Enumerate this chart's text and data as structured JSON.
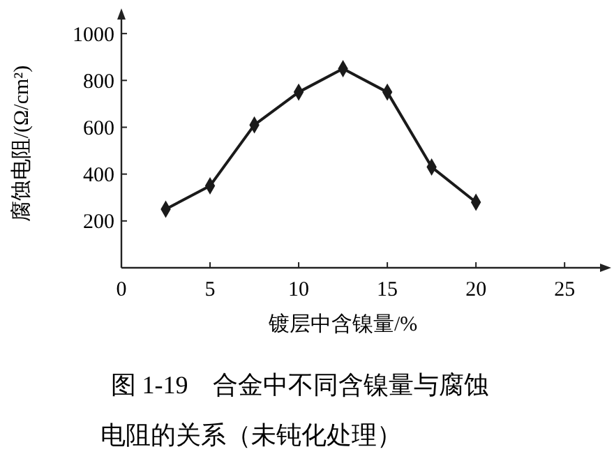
{
  "chart_data": {
    "type": "line",
    "title": "图 1-19　合金中不同含镍量与腐蚀电阻的关系（未钝化处理）",
    "xlabel": "镀层中含镍量/%",
    "ylabel": "腐蚀电阻/(Ω/cm²)",
    "x": [
      2.5,
      5,
      7.5,
      10,
      12.5,
      15,
      17.5,
      20
    ],
    "series": [
      {
        "color": "#1a1a1a",
        "values": [
          250,
          350,
          610,
          750,
          850,
          750,
          430,
          280
        ]
      }
    ],
    "xlim": [
      0,
      27
    ],
    "xticks": [
      0,
      5,
      10,
      15,
      20,
      25
    ],
    "ylim": [
      0,
      1060
    ],
    "yticks": [
      200,
      400,
      600,
      800,
      1000
    ],
    "grid": false,
    "marker": "diamond",
    "line_style": "solid"
  }
}
